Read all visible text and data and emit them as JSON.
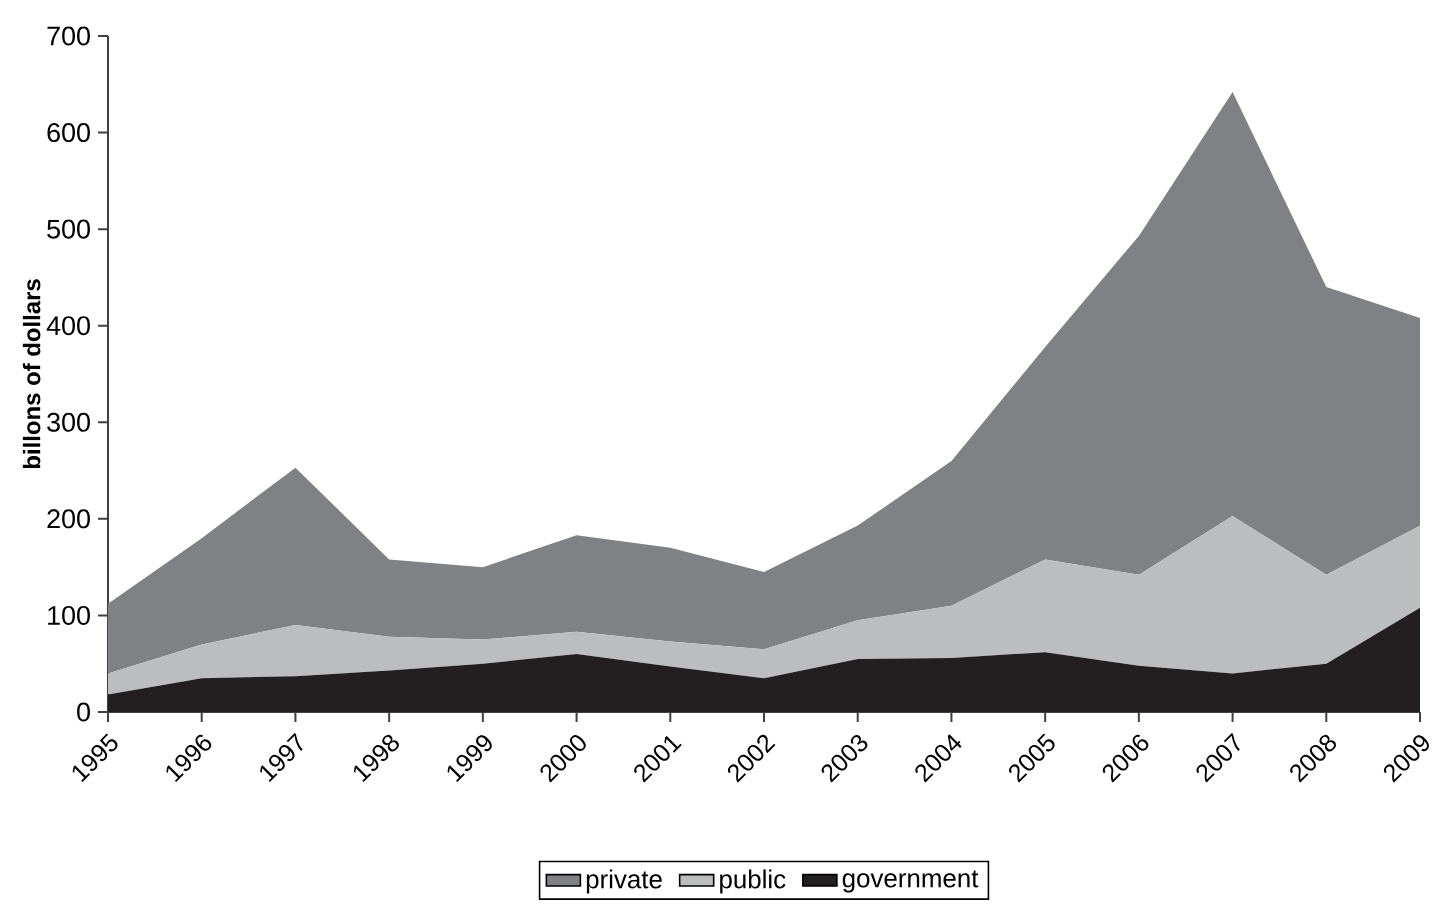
{
  "chart_data": {
    "type": "area",
    "ylabel": "billons of dollars",
    "categories": [
      "1995",
      "1996",
      "1997",
      "1998",
      "1999",
      "2000",
      "2001",
      "2002",
      "2003",
      "2004",
      "2005",
      "2006",
      "2007",
      "2008",
      "2009"
    ],
    "stacked": true,
    "ylim": [
      0,
      700
    ],
    "yticks": [
      0,
      100,
      200,
      300,
      400,
      500,
      600,
      700
    ],
    "legend": "bottom",
    "grid": false,
    "series": [
      {
        "name": "government",
        "color": "#231f20",
        "values": [
          18,
          35,
          37,
          43,
          50,
          60,
          47,
          35,
          55,
          56,
          62,
          48,
          40,
          50,
          108
        ]
      },
      {
        "name": "public",
        "color": "#bcbdbf",
        "values": [
          22,
          35,
          53,
          35,
          25,
          23,
          26,
          30,
          40,
          54,
          96,
          94,
          163,
          92,
          85
        ]
      },
      {
        "name": "private",
        "color": "#808184",
        "values": [
          72,
          110,
          163,
          80,
          75,
          100,
          97,
          80,
          98,
          150,
          220,
          351,
          439,
          298,
          215
        ]
      }
    ]
  }
}
